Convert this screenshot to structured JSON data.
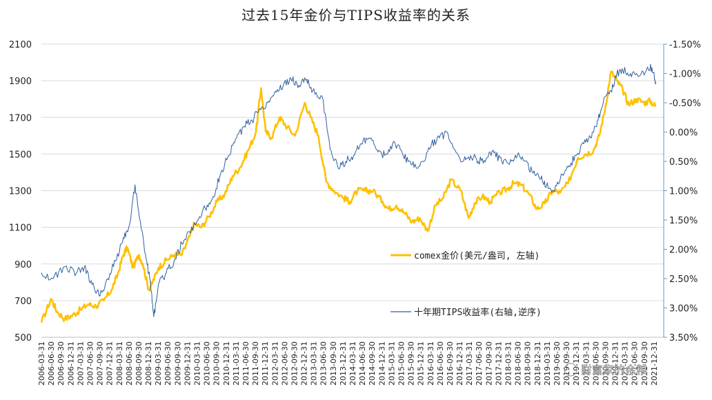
{
  "chart_data": {
    "type": "line",
    "title": "过去15年金价与TIPS收益率的关系",
    "xlabel": "",
    "ylabel_left": "",
    "ylabel_right": "",
    "ylim_left": [
      500,
      2100
    ],
    "ylim_right_reversed": [
      -1.5,
      3.5
    ],
    "left_ticks": [
      "500",
      "700",
      "900",
      "1100",
      "1300",
      "1500",
      "1700",
      "1900",
      "2100"
    ],
    "right_ticks": [
      "-1.50%",
      "-1.00%",
      "-0.50%",
      "0.00%",
      "0.50%",
      "1.00%",
      "1.50%",
      "2.00%",
      "2.50%",
      "3.00%",
      "3.50%"
    ],
    "x_ticks": [
      "2006-03-31",
      "2006-06-30",
      "2006-09-30",
      "2006-12-31",
      "2007-03-31",
      "2007-06-30",
      "2007-09-30",
      "2007-12-31",
      "2008-03-31",
      "2008-06-30",
      "2008-09-30",
      "2008-12-31",
      "2009-03-31",
      "2009-06-30",
      "2009-09-30",
      "2009-12-31",
      "2010-03-31",
      "2010-06-30",
      "2010-09-30",
      "2010-12-31",
      "2011-03-31",
      "2011-06-30",
      "2011-09-30",
      "2011-12-31",
      "2012-03-31",
      "2012-06-30",
      "2012-09-30",
      "2012-12-31",
      "2013-03-31",
      "2013-06-30",
      "2013-09-30",
      "2013-12-31",
      "2014-03-31",
      "2014-06-30",
      "2014-09-30",
      "2014-12-31",
      "2015-03-31",
      "2015-06-30",
      "2015-09-30",
      "2015-12-31",
      "2016-03-31",
      "2016-06-30",
      "2016-09-30",
      "2016-12-31",
      "2017-03-31",
      "2017-06-30",
      "2017-09-30",
      "2017-12-31",
      "2018-03-31",
      "2018-06-30",
      "2018-09-30",
      "2018-12-31",
      "2019-03-31",
      "2019-06-30",
      "2019-09-30",
      "2019-12-31",
      "2020-03-31",
      "2020-06-30",
      "2020-09-30",
      "2020-12-31",
      "2021-03-31",
      "2021-06-30",
      "2021-09-30",
      "2021-12-31"
    ],
    "grid": true,
    "legend_placement": "center-right",
    "series": [
      {
        "name": "comex金价(美元/盎司, 左轴)",
        "axis": "left",
        "color": "#FFC000",
        "x": [
          2006.0,
          2006.25,
          2006.4,
          2006.6,
          2006.8,
          2007.0,
          2007.2,
          2007.4,
          2007.6,
          2007.8,
          2007.95,
          2008.1,
          2008.2,
          2008.35,
          2008.5,
          2008.6,
          2008.75,
          2008.85,
          2009.0,
          2009.2,
          2009.4,
          2009.6,
          2009.8,
          2009.92,
          2010.1,
          2010.3,
          2010.5,
          2010.7,
          2010.9,
          2011.1,
          2011.3,
          2011.5,
          2011.63,
          2011.75,
          2011.9,
          2012.1,
          2012.25,
          2012.5,
          2012.75,
          2012.9,
          2013.1,
          2013.3,
          2013.5,
          2013.75,
          2013.9,
          2014.1,
          2014.3,
          2014.5,
          2014.75,
          2014.9,
          2015.1,
          2015.3,
          2015.5,
          2015.7,
          2015.9,
          2016.1,
          2016.3,
          2016.5,
          2016.75,
          2016.95,
          2017.1,
          2017.3,
          2017.5,
          2017.75,
          2017.95,
          2018.1,
          2018.3,
          2018.5,
          2018.7,
          2018.9,
          2019.1,
          2019.3,
          2019.5,
          2019.75,
          2019.95,
          2020.15,
          2020.3,
          2020.45,
          2020.6,
          2020.75,
          2020.9,
          2021.05,
          2021.25,
          2021.45,
          2021.6,
          2021.75
        ],
        "values": [
          580,
          710,
          640,
          600,
          620,
          650,
          680,
          670,
          700,
          760,
          840,
          950,
          990,
          880,
          950,
          900,
          760,
          800,
          880,
          920,
          950,
          950,
          1050,
          1120,
          1100,
          1160,
          1240,
          1280,
          1380,
          1430,
          1520,
          1620,
          1860,
          1620,
          1590,
          1700,
          1660,
          1600,
          1780,
          1700,
          1600,
          1350,
          1300,
          1260,
          1240,
          1300,
          1300,
          1300,
          1240,
          1200,
          1220,
          1180,
          1130,
          1150,
          1080,
          1220,
          1260,
          1360,
          1300,
          1150,
          1230,
          1270,
          1240,
          1290,
          1310,
          1340,
          1330,
          1280,
          1200,
          1230,
          1300,
          1290,
          1340,
          1480,
          1500,
          1520,
          1600,
          1750,
          1950,
          1900,
          1850,
          1770,
          1800,
          1780,
          1790,
          1760
        ]
      },
      {
        "name": "十年期TIPS收益率(右轴,逆序)",
        "axis": "right",
        "color": "#2E5E9E",
        "x": [
          2006.0,
          2006.3,
          2006.6,
          2006.9,
          2007.1,
          2007.3,
          2007.5,
          2007.7,
          2007.9,
          2008.1,
          2008.25,
          2008.4,
          2008.55,
          2008.7,
          2008.8,
          2008.88,
          2009.0,
          2009.2,
          2009.4,
          2009.6,
          2009.8,
          2010.0,
          2010.2,
          2010.4,
          2010.6,
          2010.8,
          2011.0,
          2011.2,
          2011.4,
          2011.6,
          2011.8,
          2012.0,
          2012.2,
          2012.4,
          2012.6,
          2012.8,
          2012.95,
          2013.2,
          2013.4,
          2013.6,
          2013.8,
          2014.0,
          2014.2,
          2014.4,
          2014.6,
          2014.8,
          2015.0,
          2015.2,
          2015.4,
          2015.6,
          2015.8,
          2016.0,
          2016.2,
          2016.4,
          2016.6,
          2016.8,
          2017.0,
          2017.2,
          2017.4,
          2017.6,
          2017.8,
          2018.0,
          2018.2,
          2018.4,
          2018.6,
          2018.8,
          2018.95,
          2019.1,
          2019.3,
          2019.5,
          2019.7,
          2019.9,
          2020.1,
          2020.25,
          2020.4,
          2020.6,
          2020.75,
          2020.9,
          2021.1,
          2021.3,
          2021.5,
          2021.65,
          2021.75
        ],
        "values": [
          2.4,
          2.5,
          2.3,
          2.4,
          2.3,
          2.6,
          2.8,
          2.5,
          2.2,
          1.8,
          1.6,
          0.9,
          1.6,
          2.2,
          2.6,
          3.15,
          2.6,
          2.4,
          2.2,
          1.9,
          1.7,
          1.5,
          1.3,
          1.1,
          0.7,
          0.4,
          0.1,
          -0.1,
          -0.2,
          -0.4,
          -0.5,
          -0.7,
          -0.8,
          -0.9,
          -0.8,
          -0.9,
          -0.7,
          -0.6,
          0.3,
          0.6,
          0.5,
          0.4,
          0.2,
          0.1,
          0.3,
          0.4,
          0.2,
          0.3,
          0.5,
          0.6,
          0.5,
          0.2,
          0.1,
          0.0,
          0.3,
          0.5,
          0.4,
          0.5,
          0.45,
          0.35,
          0.5,
          0.55,
          0.4,
          0.5,
          0.7,
          0.8,
          0.9,
          1.0,
          0.8,
          0.6,
          0.4,
          0.2,
          0.1,
          -0.2,
          -0.5,
          -0.7,
          -1.0,
          -1.05,
          -1.0,
          -0.95,
          -1.05,
          -1.1,
          -0.85
        ]
      }
    ]
  },
  "watermark": "财富家的余粮"
}
